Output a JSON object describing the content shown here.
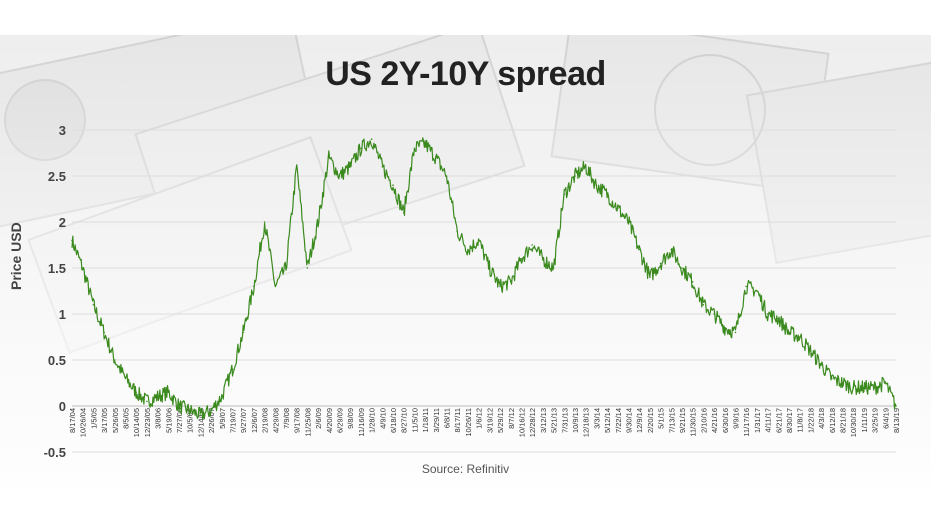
{
  "chart_data": {
    "type": "line",
    "title": "US 2Y-10Y spread",
    "ylabel": "Price USD",
    "xlabel": "",
    "source": "Source: Refinitiv",
    "ylim": [
      -0.5,
      3
    ],
    "yticks": [
      "3",
      "2.5",
      "2",
      "1.5",
      "1",
      "0.5",
      "0",
      "-0.5"
    ],
    "ytick_values": [
      3,
      2.5,
      2,
      1.5,
      1,
      0.5,
      0,
      -0.5
    ],
    "grid": true,
    "legend": "none",
    "line_color": "#3a8a1e",
    "xticks": [
      "8/17/04",
      "10/26/04",
      "1/5/05",
      "3/17/05",
      "5/26/05",
      "8/5/05",
      "10/14/05",
      "12/23/05",
      "3/8/06",
      "5/19/06",
      "7/27/06",
      "10/5/06",
      "12/14/06",
      "2/26/07",
      "5/9/07",
      "7/19/07",
      "9/27/07",
      "12/6/07",
      "2/19/08",
      "4/29/08",
      "7/9/08",
      "9/17/08",
      "11/25/08",
      "2/6/09",
      "4/20/09",
      "6/29/09",
      "9/8/09",
      "11/16/09",
      "1/28/10",
      "4/9/10",
      "6/18/10",
      "8/27/10",
      "11/5/10",
      "1/18/11",
      "3/29/11",
      "6/8/11",
      "8/17/11",
      "10/26/11",
      "1/6/12",
      "3/19/12",
      "5/29/12",
      "8/7/12",
      "10/16/12",
      "12/28/12",
      "3/12/13",
      "5/21/13",
      "7/31/13",
      "10/9/13",
      "12/18/13",
      "3/3/14",
      "5/12/14",
      "7/22/14",
      "9/30/14",
      "12/9/14",
      "2/20/15",
      "5/1/15",
      "7/13/15",
      "9/21/15",
      "11/30/15",
      "2/10/16",
      "4/21/16",
      "6/30/16",
      "9/9/16",
      "11/17/16",
      "1/31/17",
      "4/11/17",
      "6/21/17",
      "8/30/17",
      "11/8/17",
      "1/22/18",
      "4/3/18",
      "6/12/18",
      "8/21/18",
      "10/30/18",
      "1/11/19",
      "3/25/19",
      "6/4/19",
      "8/13/19"
    ],
    "series": [
      {
        "x": [
          "8/17/04",
          "10/26/04",
          "1/5/05",
          "3/17/05",
          "5/26/05",
          "8/5/05",
          "10/14/05",
          "12/23/05",
          "3/8/06",
          "5/19/06",
          "7/27/06",
          "10/5/06",
          "12/14/06",
          "2/26/07",
          "5/9/07",
          "7/19/07",
          "9/27/07",
          "12/6/07",
          "2/19/08",
          "4/29/08",
          "7/9/08",
          "9/17/08",
          "11/25/08",
          "2/6/09",
          "4/20/09",
          "6/29/09",
          "9/8/09",
          "11/16/09",
          "1/28/10",
          "4/9/10",
          "6/18/10",
          "8/27/10",
          "11/5/10",
          "1/18/11",
          "3/29/11",
          "6/8/11",
          "8/17/11",
          "10/26/11",
          "1/6/12",
          "3/19/12",
          "5/29/12",
          "8/7/12",
          "10/16/12",
          "12/28/12",
          "3/12/13",
          "5/21/13",
          "7/31/13",
          "10/9/13",
          "12/18/13",
          "3/3/14",
          "5/12/14",
          "7/22/14",
          "9/30/14",
          "12/9/14",
          "2/20/15",
          "5/1/15",
          "7/13/15",
          "9/21/15",
          "11/30/15",
          "2/10/16",
          "4/21/16",
          "6/30/16",
          "9/9/16",
          "11/17/16",
          "1/31/17",
          "4/11/17",
          "6/21/17",
          "8/30/17",
          "11/8/17",
          "1/22/18",
          "4/3/18",
          "6/12/18",
          "8/21/18",
          "10/30/18",
          "1/11/19",
          "3/25/19",
          "6/4/19",
          "8/13/19"
        ],
        "values": [
          1.8,
          1.5,
          1.1,
          0.8,
          0.5,
          0.3,
          0.15,
          0.05,
          0.1,
          0.15,
          0.0,
          -0.05,
          -0.1,
          -0.05,
          0.1,
          0.4,
          0.8,
          1.3,
          2.0,
          1.3,
          1.5,
          2.6,
          1.5,
          2.0,
          2.7,
          2.5,
          2.6,
          2.8,
          2.9,
          2.6,
          2.4,
          2.1,
          2.8,
          2.85,
          2.7,
          2.5,
          1.9,
          1.7,
          1.8,
          1.5,
          1.3,
          1.35,
          1.6,
          1.75,
          1.6,
          1.5,
          2.3,
          2.5,
          2.6,
          2.4,
          2.3,
          2.15,
          2.0,
          1.7,
          1.4,
          1.55,
          1.7,
          1.5,
          1.35,
          1.1,
          1.0,
          0.85,
          0.8,
          1.3,
          1.25,
          1.0,
          0.95,
          0.8,
          0.75,
          0.6,
          0.45,
          0.3,
          0.25,
          0.2,
          0.2,
          0.2,
          0.25,
          0.0
        ]
      }
    ]
  }
}
